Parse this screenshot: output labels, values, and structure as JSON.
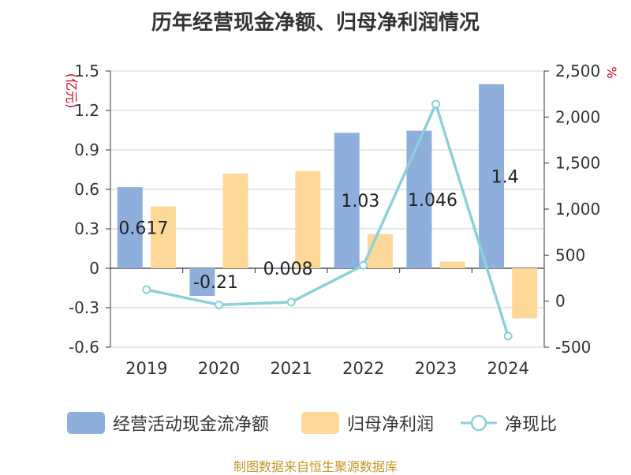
{
  "chart_data": {
    "type": "bar",
    "title": "历年经营现金净额、归母净利润情况",
    "left_unit": "(亿元)",
    "right_unit": "%",
    "categories": [
      "2019",
      "2020",
      "2021",
      "2022",
      "2023",
      "2024"
    ],
    "ylim": [
      -0.6,
      1.5
    ],
    "yticks": [
      "1.5",
      "1.2",
      "0.9",
      "0.6",
      "0.3",
      "0",
      "-0.3",
      "-0.6"
    ],
    "y2lim": [
      -500,
      2500
    ],
    "y2ticks": [
      "2,500",
      "2,000",
      "1,500",
      "1,000",
      "500",
      "0",
      "-500"
    ],
    "series": [
      {
        "name": "经营活动现金流净额",
        "type": "bar",
        "color": "#8eaedb",
        "values": [
          0.617,
          -0.21,
          0.008,
          1.03,
          1.046,
          1.4
        ],
        "labels": [
          "0.617",
          "-0.21",
          "0.008",
          "1.03",
          "1.046",
          "1.4"
        ]
      },
      {
        "name": "归母净利润",
        "type": "bar",
        "color": "#fed899",
        "values": [
          0.47,
          0.72,
          0.74,
          0.26,
          0.05,
          -0.38
        ]
      },
      {
        "name": "净现比",
        "type": "line",
        "axis": "right",
        "color": "#8ad2d8",
        "values": [
          125,
          -40,
          -10,
          390,
          2140,
          -380
        ]
      }
    ]
  },
  "source": "制图数据来自恒生聚源数据库"
}
